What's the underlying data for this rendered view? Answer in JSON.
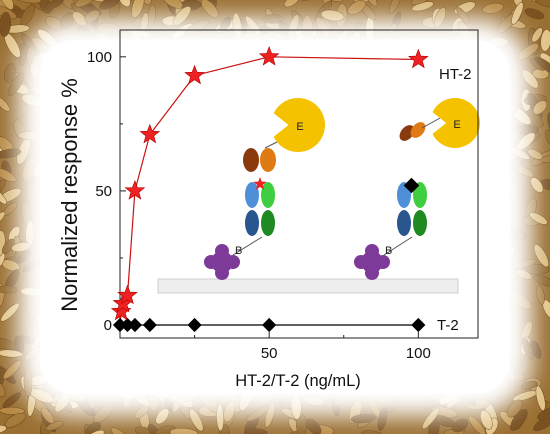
{
  "chart_data": {
    "type": "scatter",
    "xlabel": "HT-2/T-2 (ng/mL)",
    "ylabel": "Normalized response %",
    "xlim": [
      0,
      120
    ],
    "ylim": [
      0,
      110
    ],
    "xticks": [
      50,
      100
    ],
    "yticks": [
      0,
      50,
      100
    ],
    "grid": false,
    "series": [
      {
        "name": "HT-2",
        "marker": "star",
        "color": "#ee2222",
        "line_color": "#cc1111",
        "fit": "saturation curve",
        "x": [
          0,
          0.4,
          1,
          2.5,
          5,
          10,
          25,
          50,
          100
        ],
        "y": [
          0,
          5,
          8,
          11,
          50,
          71,
          93,
          100,
          99
        ]
      },
      {
        "name": "T-2",
        "marker": "diamond",
        "color": "#000000",
        "line_color": "#000000",
        "x": [
          0,
          2.5,
          5,
          10,
          25,
          50,
          100
        ],
        "y": [
          0,
          0,
          0,
          0,
          0,
          0,
          0
        ]
      }
    ]
  },
  "diagram": {
    "enzyme_label": "E",
    "biotin_label": "B",
    "colors": {
      "enzyme": "#f5c200",
      "antibody_brown": "#8b3a0e",
      "antibody_orange": "#e07a14",
      "antibody_light_blue": "#4f8fd8",
      "antibody_dark_blue": "#2a568f",
      "antibody_light_green": "#3fce3f",
      "antibody_dark_green": "#1f8a22",
      "streptavidin": "#7e3a99",
      "surface": "#eeeeee",
      "toxin_star": "#ee2222",
      "toxin_diamond": "#000000"
    }
  }
}
